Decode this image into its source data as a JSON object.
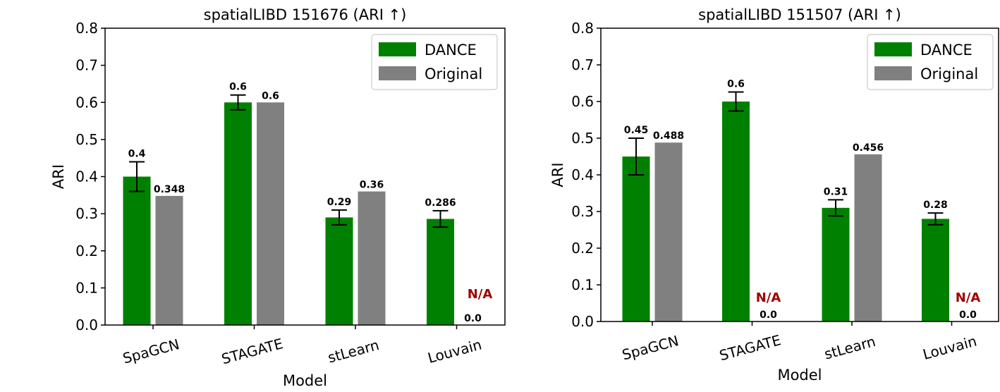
{
  "chart_data": [
    {
      "type": "bar",
      "title": "spatialLIBD 151676 (ARI ↑)",
      "xlabel": "Model",
      "ylabel": "ARI",
      "ylim": [
        0,
        0.8
      ],
      "yticks": [
        "0.0",
        "0.1",
        "0.2",
        "0.3",
        "0.4",
        "0.5",
        "0.6",
        "0.7",
        "0.8"
      ],
      "categories": [
        "SpaGCN",
        "STAGATE",
        "stLearn",
        "Louvain"
      ],
      "legend_position": "top-right",
      "grid": false,
      "series": [
        {
          "name": "DANCE",
          "color": "#008000",
          "values": [
            0.4,
            0.6,
            0.29,
            0.286
          ],
          "errors": [
            0.04,
            0.02,
            0.02,
            0.022
          ],
          "labels": [
            "0.4",
            "0.6",
            "0.29",
            "0.286"
          ]
        },
        {
          "name": "Original",
          "color": "#808080",
          "values": [
            0.348,
            0.6,
            0.36,
            0.0
          ],
          "labels": [
            "0.348",
            "0.6",
            "0.36",
            "0.0"
          ],
          "not_available": [
            false,
            false,
            false,
            true
          ]
        }
      ],
      "na_text": "N/A",
      "na_color": "#a00000"
    },
    {
      "type": "bar",
      "title": "spatialLIBD 151507 (ARI ↑)",
      "xlabel": "Model",
      "ylabel": "ARI",
      "ylim": [
        0,
        0.8
      ],
      "yticks": [
        "0.0",
        "0.1",
        "0.2",
        "0.3",
        "0.4",
        "0.5",
        "0.6",
        "0.7",
        "0.8"
      ],
      "categories": [
        "SpaGCN",
        "STAGATE",
        "stLearn",
        "Louvain"
      ],
      "legend_position": "top-right",
      "grid": false,
      "series": [
        {
          "name": "DANCE",
          "color": "#008000",
          "values": [
            0.45,
            0.6,
            0.31,
            0.28
          ],
          "errors": [
            0.05,
            0.026,
            0.022,
            0.016
          ],
          "labels": [
            "0.45",
            "0.6",
            "0.31",
            "0.28"
          ]
        },
        {
          "name": "Original",
          "color": "#808080",
          "values": [
            0.488,
            0.0,
            0.456,
            0.0
          ],
          "labels": [
            "0.488",
            "0.0",
            "0.456",
            "0.0"
          ],
          "not_available": [
            false,
            true,
            false,
            true
          ]
        }
      ],
      "na_text": "N/A",
      "na_color": "#a00000"
    }
  ]
}
